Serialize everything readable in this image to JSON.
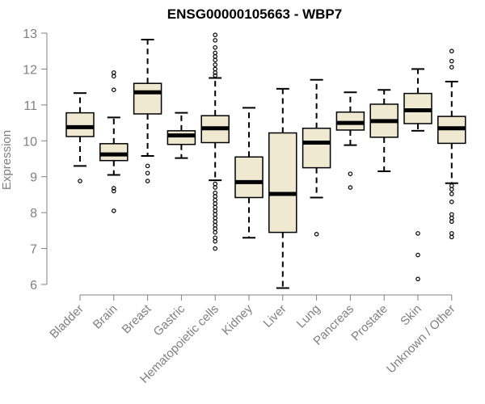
{
  "chart_data": {
    "type": "boxplot",
    "title": "ENSG00000105663 - WBP7",
    "xlabel": "",
    "ylabel": "Expression",
    "ylim": [
      6,
      13
    ],
    "yticks": [
      6,
      7,
      8,
      9,
      10,
      11,
      12,
      13
    ],
    "categories": [
      "Bladder",
      "Brain",
      "Breast",
      "Gastric",
      "Hematopoietic cells",
      "Kidney",
      "Liver",
      "Lung",
      "Pancreas",
      "Prostate",
      "Skin",
      "Unknown / Other"
    ],
    "boxes": [
      {
        "name": "Bladder",
        "whisker_low": 9.3,
        "q1": 10.12,
        "median": 10.38,
        "q3": 10.78,
        "whisker_high": 11.33,
        "outliers": [
          8.88
        ]
      },
      {
        "name": "Brain",
        "whisker_low": 9.05,
        "q1": 9.45,
        "median": 9.62,
        "q3": 9.92,
        "whisker_high": 10.65,
        "outliers": [
          11.9,
          11.8,
          11.42,
          8.68,
          8.6,
          8.05
        ]
      },
      {
        "name": "Breast",
        "whisker_low": 9.58,
        "q1": 10.75,
        "median": 11.35,
        "q3": 11.6,
        "whisker_high": 12.82,
        "outliers": [
          9.3,
          9.1,
          8.88
        ]
      },
      {
        "name": "Gastric",
        "whisker_low": 9.52,
        "q1": 9.9,
        "median": 10.15,
        "q3": 10.28,
        "whisker_high": 10.78,
        "outliers": []
      },
      {
        "name": "Hematopoietic cells",
        "whisker_low": 8.9,
        "q1": 9.95,
        "median": 10.35,
        "q3": 10.7,
        "whisker_high": 11.75,
        "outliers": [
          12.95,
          12.8,
          12.6,
          12.45,
          12.35,
          12.25,
          12.12,
          12.0,
          11.9,
          11.82,
          8.8,
          8.7,
          8.55,
          8.45,
          8.35,
          8.25,
          8.15,
          8.05,
          7.95,
          7.85,
          7.75,
          7.65,
          7.55,
          7.45,
          7.3,
          7.2,
          7.0
        ]
      },
      {
        "name": "Kidney",
        "whisker_low": 7.3,
        "q1": 8.42,
        "median": 8.85,
        "q3": 9.55,
        "whisker_high": 10.92,
        "outliers": []
      },
      {
        "name": "Liver",
        "whisker_low": 5.9,
        "q1": 7.45,
        "median": 8.52,
        "q3": 10.22,
        "whisker_high": 11.45,
        "outliers": []
      },
      {
        "name": "Lung",
        "whisker_low": 8.42,
        "q1": 9.25,
        "median": 9.95,
        "q3": 10.35,
        "whisker_high": 11.7,
        "outliers": [
          7.4
        ]
      },
      {
        "name": "Pancreas",
        "whisker_low": 9.88,
        "q1": 10.3,
        "median": 10.5,
        "q3": 10.8,
        "whisker_high": 11.35,
        "outliers": [
          9.08,
          8.7
        ]
      },
      {
        "name": "Prostate",
        "whisker_low": 9.15,
        "q1": 10.1,
        "median": 10.55,
        "q3": 11.02,
        "whisker_high": 11.42,
        "outliers": []
      },
      {
        "name": "Skin",
        "whisker_low": 10.28,
        "q1": 10.48,
        "median": 10.85,
        "q3": 11.32,
        "whisker_high": 12.0,
        "outliers": [
          7.42,
          6.82,
          6.15
        ]
      },
      {
        "name": "Unknown / Other",
        "whisker_low": 8.82,
        "q1": 9.93,
        "median": 10.35,
        "q3": 10.68,
        "whisker_high": 11.65,
        "outliers": [
          12.5,
          12.22,
          12.05,
          8.75,
          8.65,
          8.52,
          8.3,
          7.95,
          7.85,
          7.75,
          7.42,
          7.32
        ]
      }
    ],
    "colors": {
      "box_fill": "#efe9d2",
      "box_stroke": "#000000",
      "median": "#000000",
      "axis": "#808080",
      "text": "#808080"
    }
  }
}
